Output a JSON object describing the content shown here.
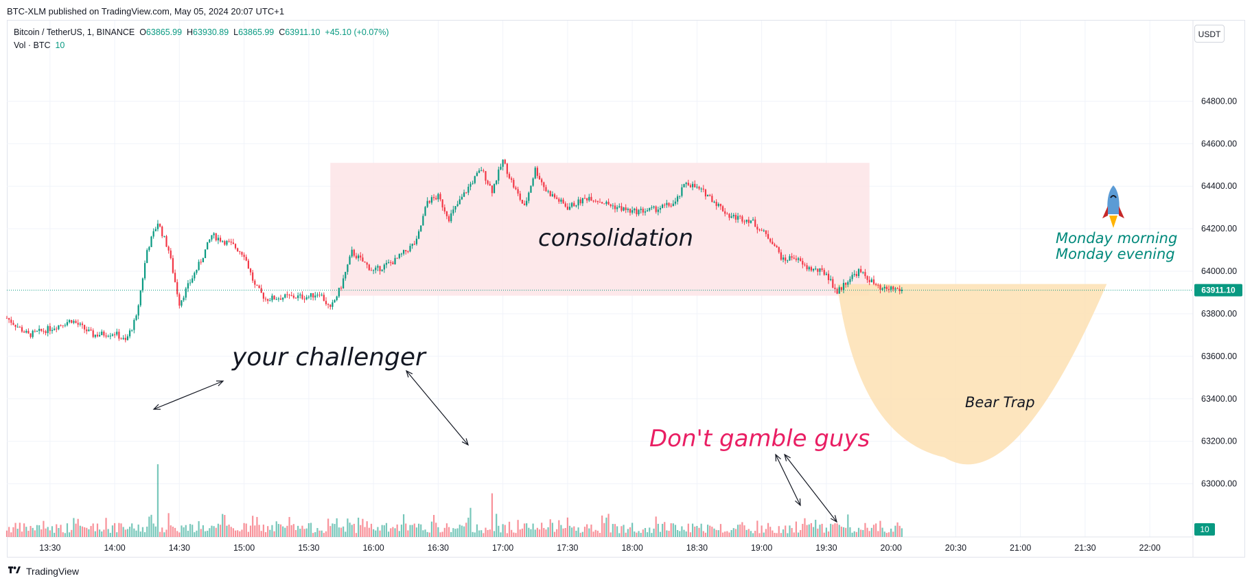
{
  "header": {
    "publisher": "BTC-XLM published on TradingView.com, May 05, 2024 20:07 UTC+1",
    "symbol": "Bitcoin / TetherUS, 1, BINANCE",
    "open_label": "O",
    "open": "63865.99",
    "high_label": "H",
    "high": "63930.89",
    "low_label": "L",
    "low": "63865.99",
    "close_label": "C",
    "close": "63911.10",
    "change": "+45.10 (+0.07%)",
    "vol_label": "Vol · BTC",
    "vol_value": "10",
    "currency": "USDT"
  },
  "footer": {
    "brand": "TradingView"
  },
  "colors": {
    "up": "#089981",
    "down": "#f23645",
    "consolidation_box": "#fde4e6",
    "bear_trap": "#fde1b3",
    "price_line": "#089981",
    "pink_text": "#e91e63",
    "teal_text": "#00897b"
  },
  "chart_data": {
    "type": "candlestick",
    "symbol": "BTCUSDT",
    "interval": "1",
    "price_axis": {
      "ticks": [
        "64800.00",
        "64600.00",
        "64400.00",
        "64200.00",
        "64000.00",
        "63800.00",
        "63600.00",
        "63400.00",
        "63200.00",
        "63000.00"
      ],
      "range": [
        62750,
        65050
      ]
    },
    "time_axis": {
      "ticks": [
        "13:30",
        "14:00",
        "14:30",
        "15:00",
        "15:30",
        "16:00",
        "16:30",
        "17:00",
        "17:30",
        "18:00",
        "18:30",
        "19:00",
        "19:30",
        "20:00",
        "20:30",
        "21:00",
        "21:30",
        "22:00"
      ],
      "start": "13:10",
      "end": "22:20"
    },
    "last_price_label": "63911.10",
    "last_price": 63911.1,
    "volume_label": "10",
    "price_path": [
      [
        "13:10",
        63780
      ],
      [
        "13:20",
        63700
      ],
      [
        "13:30",
        63730
      ],
      [
        "13:40",
        63770
      ],
      [
        "13:50",
        63700
      ],
      [
        "14:00",
        63710
      ],
      [
        "14:05",
        63670
      ],
      [
        "14:10",
        63780
      ],
      [
        "14:15",
        64100
      ],
      [
        "14:20",
        64230
      ],
      [
        "14:25",
        64100
      ],
      [
        "14:30",
        63850
      ],
      [
        "14:35",
        63950
      ],
      [
        "14:40",
        64050
      ],
      [
        "14:45",
        64170
      ],
      [
        "14:55",
        64120
      ],
      [
        "15:00",
        64080
      ],
      [
        "15:05",
        63930
      ],
      [
        "15:10",
        63870
      ],
      [
        "15:20",
        63880
      ],
      [
        "15:30",
        63880
      ],
      [
        "15:35",
        63900
      ],
      [
        "15:40",
        63820
      ],
      [
        "15:45",
        63930
      ],
      [
        "15:50",
        64090
      ],
      [
        "16:00",
        64000
      ],
      [
        "16:10",
        64050
      ],
      [
        "16:20",
        64140
      ],
      [
        "16:25",
        64330
      ],
      [
        "16:30",
        64350
      ],
      [
        "16:35",
        64250
      ],
      [
        "16:45",
        64410
      ],
      [
        "16:50",
        64480
      ],
      [
        "16:55",
        64380
      ],
      [
        "17:00",
        64520
      ],
      [
        "17:05",
        64400
      ],
      [
        "17:10",
        64300
      ],
      [
        "17:15",
        64480
      ],
      [
        "17:20",
        64380
      ],
      [
        "17:30",
        64300
      ],
      [
        "17:40",
        64350
      ],
      [
        "17:50",
        64310
      ],
      [
        "18:00",
        64280
      ],
      [
        "18:10",
        64290
      ],
      [
        "18:20",
        64320
      ],
      [
        "18:25",
        64420
      ],
      [
        "18:35",
        64360
      ],
      [
        "18:45",
        64260
      ],
      [
        "18:55",
        64240
      ],
      [
        "19:05",
        64140
      ],
      [
        "19:10",
        64050
      ],
      [
        "19:15",
        64070
      ],
      [
        "19:20",
        64020
      ],
      [
        "19:30",
        63990
      ],
      [
        "19:35",
        63900
      ],
      [
        "19:40",
        63960
      ],
      [
        "19:45",
        64000
      ],
      [
        "19:50",
        63960
      ],
      [
        "19:55",
        63910
      ],
      [
        "20:00",
        63920
      ],
      [
        "20:05",
        63911.1
      ]
    ],
    "volume_spikes": [
      [
        "14:20",
        550
      ],
      [
        "14:25",
        180
      ],
      [
        "16:55",
        330
      ],
      [
        "16:45",
        220
      ],
      [
        "19:40",
        170
      ],
      [
        "19:25",
        130
      ]
    ],
    "annotations": [
      {
        "label": "consolidation",
        "from": "15:40",
        "to": "19:50",
        "top": 64510,
        "bottom": 63885
      },
      {
        "label": "your challenger"
      },
      {
        "label": "Don't gamble guys"
      },
      {
        "label": "Bear Trap",
        "from": "19:35",
        "to": "21:40",
        "top": 63940,
        "bottom": 63150
      },
      {
        "label": "Monday morning"
      },
      {
        "label": "Monday evening"
      }
    ]
  }
}
